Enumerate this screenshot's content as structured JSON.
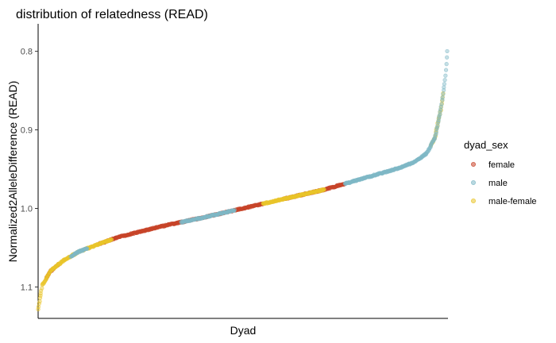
{
  "chart_data": {
    "type": "scatter",
    "title": "distribution of relatedness (READ)",
    "xlabel": "Dyad",
    "ylabel": "Normalized2AlleleDifference (READ)",
    "y_reversed": true,
    "ylim": [
      0.765,
      1.14
    ],
    "yticks": [
      0.8,
      0.9,
      1.0,
      1.1
    ],
    "ytick_labels": [
      "0.8",
      "0.9",
      "1.0",
      "1.1"
    ],
    "x_axis_labels_shown": false,
    "grid": false,
    "legend": {
      "title": "dyad_sex",
      "placement": "right",
      "entries": [
        "female",
        "male",
        "male-female"
      ]
    },
    "colors": {
      "female": "#C8442A",
      "male": "#7FB8C6",
      "male-female": "#E9C52B"
    },
    "curve_samples": {
      "rank_fraction": [
        0.0,
        0.01,
        0.03,
        0.06,
        0.1,
        0.15,
        0.2,
        0.3,
        0.4,
        0.5,
        0.6,
        0.7,
        0.8,
        0.88,
        0.92,
        0.95,
        0.97,
        0.985,
        0.995,
        1.0
      ],
      "value": [
        1.128,
        1.098,
        1.08,
        1.067,
        1.055,
        1.045,
        1.036,
        1.023,
        1.012,
        1.0,
        0.988,
        0.976,
        0.961,
        0.949,
        0.941,
        0.93,
        0.91,
        0.873,
        0.835,
        0.8
      ]
    },
    "series": [
      {
        "name": "female",
        "x_ranges": [
          [
            0.02,
            0.05
          ],
          [
            0.15,
            0.55
          ],
          [
            0.6,
            0.75
          ]
        ]
      },
      {
        "name": "male",
        "x_ranges": [
          [
            0.08,
            0.12
          ],
          [
            0.35,
            0.48
          ],
          [
            0.75,
            1.0
          ]
        ]
      },
      {
        "name": "male-female",
        "x_ranges": [
          [
            0.0,
            0.18
          ],
          [
            0.55,
            0.7
          ],
          [
            0.96,
            0.99
          ]
        ]
      }
    ]
  }
}
